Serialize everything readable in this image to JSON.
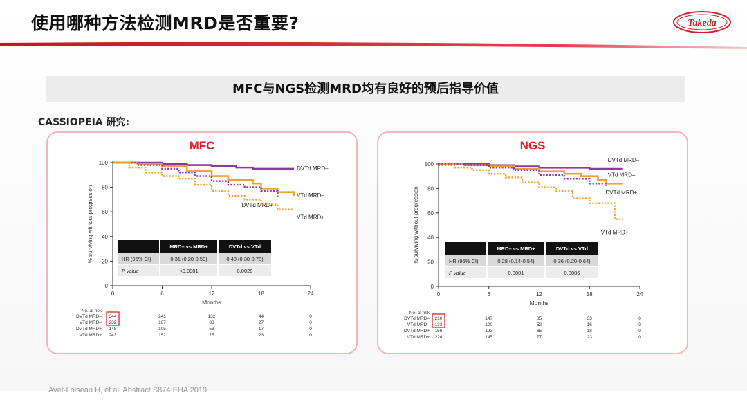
{
  "title": "使用哪种方法检测MRD是否重要?",
  "logo_text": "Takeda",
  "subtitle": "MFC与NGS检测MRD均有良好的预后指导价值",
  "study_label": "CASSIOPEIA 研究:",
  "footnote": "Avet-Loiseau H, et al. Abstract S874 EHA 2019",
  "colors": {
    "purple": "#8a3a9e",
    "orange": "#f0a030",
    "red": "#e0202a",
    "panel_border": "#f3b6b9"
  },
  "chart_data": [
    {
      "type": "line",
      "title": "MFC",
      "xlabel": "Months",
      "ylabel": "% surviving without progression",
      "xlim": [
        0,
        24
      ],
      "ylim": [
        0,
        100
      ],
      "xticks": [
        0,
        6,
        12,
        18,
        24
      ],
      "yticks": [
        0,
        20,
        40,
        60,
        80,
        100
      ],
      "series": [
        {
          "name": "DVTd MRD–",
          "color": "#8a3a9e",
          "style": "solid",
          "x": [
            0,
            3,
            6,
            9,
            12,
            15,
            17,
            18,
            20,
            22
          ],
          "y": [
            100,
            100,
            99,
            98,
            97,
            96,
            95,
            95,
            95,
            95
          ]
        },
        {
          "name": "VTd MRD–",
          "color": "#f0a030",
          "style": "solid",
          "x": [
            0,
            3,
            6,
            9,
            12,
            14,
            15,
            17,
            18,
            20,
            22
          ],
          "y": [
            100,
            99,
            97,
            93,
            89,
            86,
            86,
            83,
            79,
            76,
            73
          ]
        },
        {
          "name": "DVTd MRD+",
          "color": "#8a3a9e",
          "style": "dotted",
          "x": [
            0,
            3,
            6,
            8,
            10,
            12,
            14,
            16,
            18,
            20
          ],
          "y": [
            100,
            98,
            95,
            92,
            89,
            85,
            82,
            80,
            77,
            72
          ]
        },
        {
          "name": "VTd MRD+",
          "color": "#f0a030",
          "style": "dotted",
          "x": [
            0,
            2,
            4,
            6,
            8,
            10,
            12,
            14,
            16,
            18,
            20,
            22
          ],
          "y": [
            100,
            96,
            92,
            89,
            87,
            82,
            77,
            73,
            70,
            66,
            62,
            62
          ]
        }
      ],
      "table": {
        "headers": [
          "",
          "MRD– vs MRD+",
          "DVTd vs VTd"
        ],
        "rows": [
          [
            "HR (95% CI)",
            "0.31 (0.20-0.50)",
            "0.48 (0.30-0.78)"
          ],
          [
            "P value",
            "<0.0001",
            "0.0028"
          ]
        ]
      },
      "at_risk": {
        "label": "No. at risk",
        "rows": [
          {
            "name": "DVTd MRD–",
            "values": [
              "344",
              "241",
              "132",
              "44",
              "0"
            ]
          },
          {
            "name": "VTd MRD–",
            "values": [
              "232",
              "167",
              "88",
              "27",
              "0"
            ]
          },
          {
            "name": "DVTd MRD+",
            "values": [
              "148",
              "105",
              "53",
              "17",
              "0"
            ]
          },
          {
            "name": "VTd MRD+",
            "values": [
              "243",
              "152",
              "75",
              "23",
              "0"
            ]
          }
        ]
      }
    },
    {
      "type": "line",
      "title": "NGS",
      "xlabel": "Months",
      "ylabel": "% surviving without progression",
      "xlim": [
        0,
        24
      ],
      "ylim": [
        0,
        100
      ],
      "xticks": [
        0,
        6,
        12,
        18,
        24
      ],
      "yticks": [
        0,
        20,
        40,
        60,
        80,
        100
      ],
      "series": [
        {
          "name": "DVTd MRD–",
          "color": "#8a3a9e",
          "style": "solid",
          "x": [
            0,
            3,
            6,
            9,
            12,
            15,
            18,
            20,
            22
          ],
          "y": [
            100,
            100,
            99,
            98,
            97,
            97,
            96,
            96,
            96
          ]
        },
        {
          "name": "VTd MRD–",
          "color": "#f0a030",
          "style": "solid",
          "x": [
            0,
            3,
            6,
            9,
            12,
            15,
            17,
            19,
            20,
            22
          ],
          "y": [
            100,
            99,
            98,
            96,
            94,
            92,
            90,
            87,
            84,
            84
          ]
        },
        {
          "name": "DVTd MRD+",
          "color": "#8a3a9e",
          "style": "dotted",
          "x": [
            0,
            3,
            6,
            9,
            12,
            15,
            18,
            20
          ],
          "y": [
            100,
            99,
            97,
            95,
            91,
            88,
            84,
            82
          ]
        },
        {
          "name": "VTd MRD+",
          "color": "#f0a030",
          "style": "dotted",
          "x": [
            0,
            2,
            4,
            6,
            8,
            10,
            12,
            14,
            16,
            18,
            20,
            21,
            22
          ],
          "y": [
            99,
            97,
            95,
            92,
            89,
            85,
            81,
            78,
            72,
            68,
            68,
            55,
            55
          ]
        }
      ],
      "table": {
        "headers": [
          "",
          "MRD– vs MRD+",
          "DVTd vs VTd"
        ],
        "rows": [
          [
            "HR (95% CI)",
            "0.28 (0.14-0.54)",
            "0.36 (0.20-0.64)"
          ],
          [
            "P value",
            "0.0001",
            "0.0006"
          ]
        ]
      },
      "at_risk": {
        "label": "No. at risk",
        "rows": [
          {
            "name": "DVTd MRD–",
            "values": [
              "210",
              "147",
              "85",
              "33",
              "0"
            ]
          },
          {
            "name": "VTd MRD–",
            "values": [
              "133",
              "100",
              "52",
              "16",
              "0"
            ]
          },
          {
            "name": "DVTd MRD+",
            "values": [
              "156",
              "123",
              "65",
              "18",
              "0"
            ]
          },
          {
            "name": "VTd MRD+",
            "values": [
              "220",
              "145",
              "77",
              "23",
              "0"
            ]
          }
        ]
      }
    }
  ]
}
